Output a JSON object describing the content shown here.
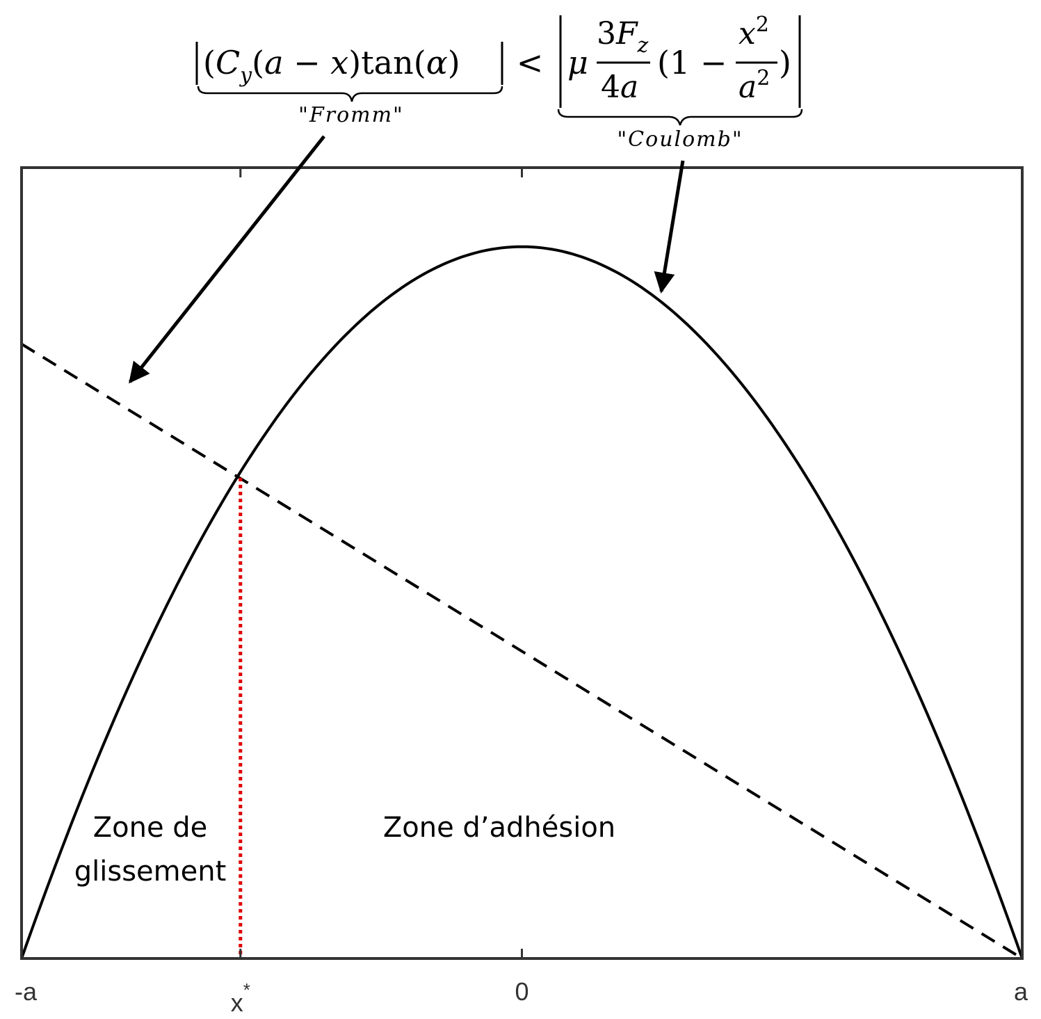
{
  "chart_data": {
    "type": "line",
    "title": "",
    "xlabel": "",
    "ylabel": "",
    "xlim": [
      -1,
      1
    ],
    "ylim": [
      0,
      1
    ],
    "grid": false,
    "x_ticks": [
      {
        "value": -1,
        "label": "-a"
      },
      {
        "value": -0.5625,
        "label": "x*"
      },
      {
        "value": 0,
        "label": "0"
      },
      {
        "value": 1,
        "label": "a"
      }
    ],
    "top_ticks": [
      -0.5625,
      0
    ],
    "series": [
      {
        "key": "coulomb",
        "style": "solid",
        "color": "#000000",
        "x": [
          -1.0,
          -0.9,
          -0.8,
          -0.7,
          -0.6,
          -0.5,
          -0.4,
          -0.3,
          -0.2,
          -0.1,
          0.0,
          0.1,
          0.2,
          0.3,
          0.4,
          0.5,
          0.6,
          0.7,
          0.8,
          0.9,
          1.0
        ],
        "y": [
          0.0,
          0.171,
          0.324,
          0.459,
          0.576,
          0.675,
          0.756,
          0.819,
          0.864,
          0.891,
          0.9,
          0.891,
          0.864,
          0.819,
          0.756,
          0.675,
          0.576,
          0.459,
          0.324,
          0.171,
          0.0
        ]
      },
      {
        "key": "fromm",
        "style": "dashed",
        "color": "#000000",
        "x": [
          -1.0,
          1.0
        ],
        "y": [
          0.777,
          0.0
        ]
      }
    ],
    "marker_line": {
      "x": -0.5625,
      "y_top": 0.6077,
      "color": "#e00000",
      "style": "dotted"
    },
    "annotations": {
      "fromm_tag": "\"Fromm\"",
      "coulomb_tag": "\"Coulomb\"",
      "less_than": "<",
      "zone_slip_line1": "Zone de",
      "zone_slip_line2": "glissement",
      "zone_adhesion": "Zone d’adhésion"
    }
  }
}
